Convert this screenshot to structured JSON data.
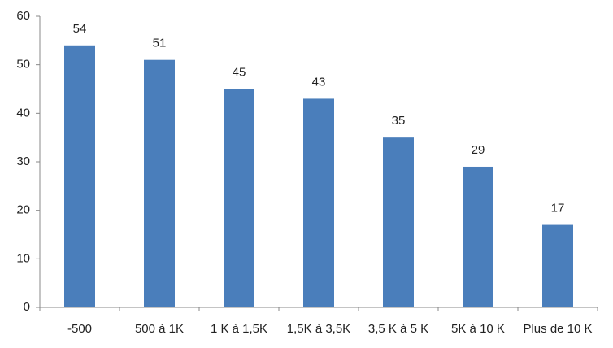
{
  "chart_data": {
    "type": "bar",
    "categories": [
      "-500",
      "500 à 1K",
      "1 K à 1,5K",
      "1,5K à 3,5K",
      "3,5 K à 5 K",
      "5K à 10 K",
      "Plus de 10 K"
    ],
    "values": [
      54,
      51,
      45,
      43,
      35,
      29,
      17
    ],
    "color": "#4a7ebb",
    "ylim": [
      0,
      60
    ],
    "yticks": [
      0,
      10,
      20,
      30,
      40,
      50,
      60
    ],
    "grid": false
  }
}
